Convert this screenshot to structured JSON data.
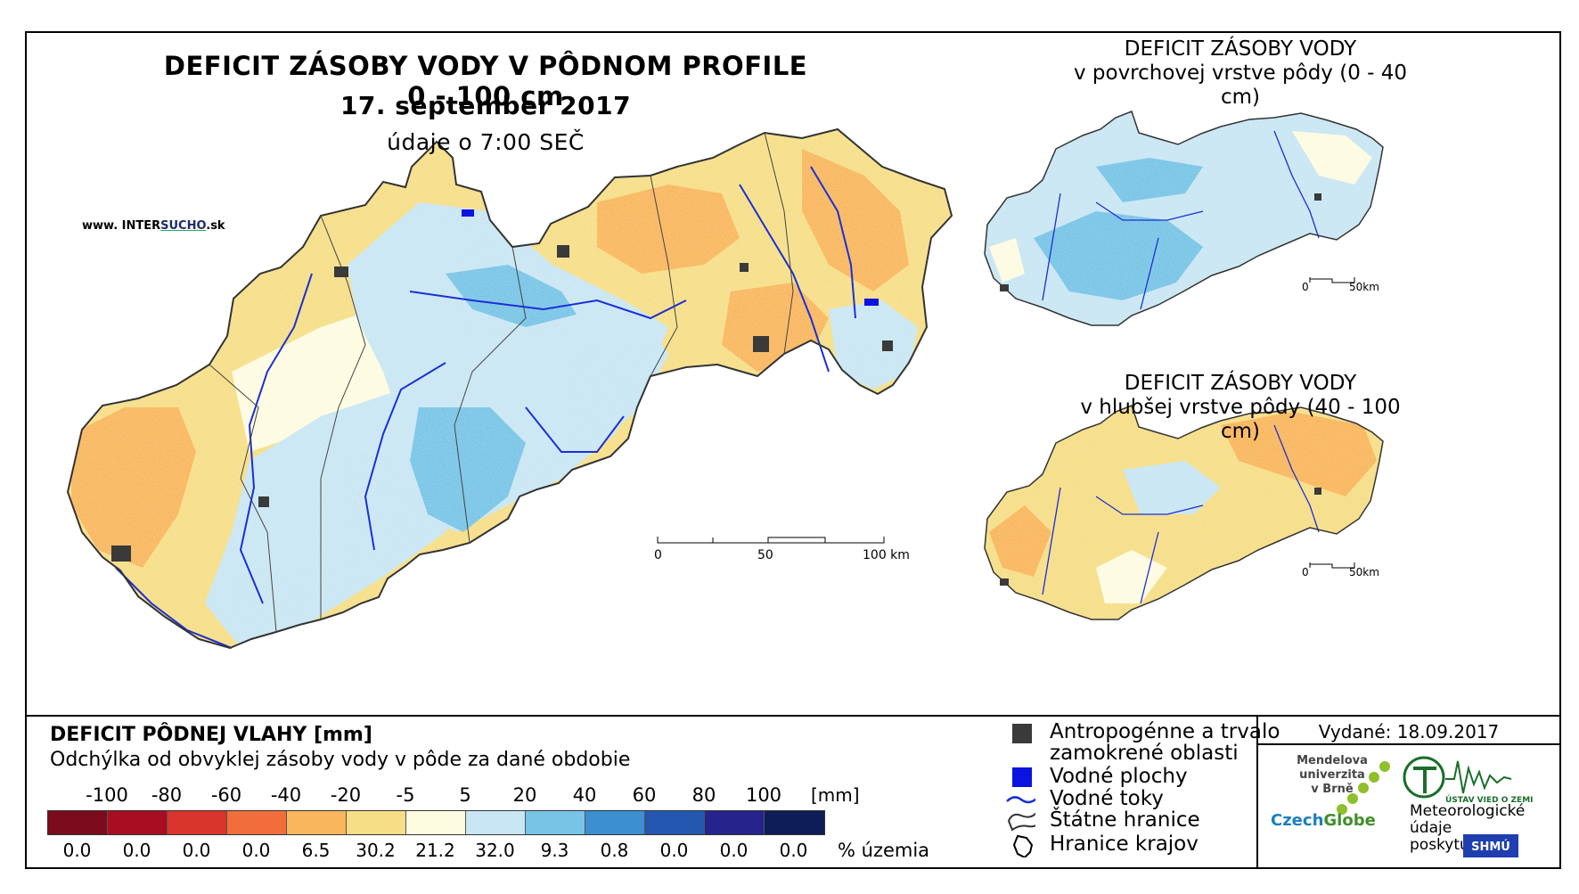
{
  "main_map": {
    "title": "DEFICIT ZÁSOBY VODY V PÔDNOM PROFILE 0 - 100 cm",
    "date": "17. september 2017",
    "time_note": "údaje o 7:00 SEČ",
    "website_prefix": "www. INTER",
    "website_brand": "SUCHO",
    "website_suffix": ".sk",
    "scale": [
      "0",
      "50",
      "100 km"
    ]
  },
  "inset_top": {
    "title_line1": "DEFICIT ZÁSOBY VODY",
    "title_line2": "v povrchovej vrstve pôdy (0 - 40 cm)",
    "scale": [
      "0",
      "50km"
    ]
  },
  "inset_bottom": {
    "title_line1": "DEFICIT ZÁSOBY VODY",
    "title_line2": "v hlubšej vrstve pôdy (40 - 100 cm)",
    "scale": [
      "0",
      "50km"
    ]
  },
  "legend": {
    "title": "DEFICIT PÔDNEJ VLAHY [mm]",
    "subtitle": "Odchýlka od obvyklej zásoby vody v pôde za dané obdobie",
    "ticks": [
      "-100",
      "-80",
      "-60",
      "-40",
      "-20",
      "-5",
      "5",
      "20",
      "40",
      "60",
      "80",
      "100"
    ],
    "unit": "[mm]",
    "colors": [
      "#7b0b1d",
      "#a80d22",
      "#d9342b",
      "#f26d3c",
      "#f9b65c",
      "#f6de86",
      "#fdfbe0",
      "#c8e6f3",
      "#77c4e6",
      "#3c8fd0",
      "#2357b0",
      "#27238c",
      "#0e1d57"
    ],
    "percentages": [
      "0.0",
      "0.0",
      "0.0",
      "0.0",
      "6.5",
      "30.2",
      "21.2",
      "32.0",
      "9.3",
      "0.8",
      "0.0",
      "0.0",
      "0.0"
    ],
    "pct_unit": "% územia"
  },
  "symbols": {
    "antropogenne_line1": "Antropogénne a trvalo",
    "antropogenne_line2": "zamokrené oblasti",
    "vodne_plochy": "Vodné plochy",
    "vodne_toky": "Vodné toky",
    "statne_hranice": "Štátne hranice",
    "hranice_krajov": "Hranice krajov"
  },
  "issued": "Vydané: 18.09.2017",
  "logos": {
    "mendel_line1": "Mendelova",
    "mendel_line2": "univerzita",
    "mendel_line3": "v Brně",
    "czech": "Czech",
    "globe": "Globe",
    "meteo_line1": "Meteorologické",
    "meteo_line2": "údaje",
    "meteo_line3": "poskytuje:",
    "ustav": "ÚSTAV VIED O ZEMI",
    "shmu": "SHMÚ"
  },
  "map_colors": {
    "slight_deficit": "#f9b65c",
    "near_normal_dry": "#f6de86",
    "normal": "#fdfbe0",
    "slight_surplus": "#c8e6f3",
    "surplus": "#77c4e6",
    "river": "#1a2fd6",
    "urban": "#3a3a3a"
  }
}
